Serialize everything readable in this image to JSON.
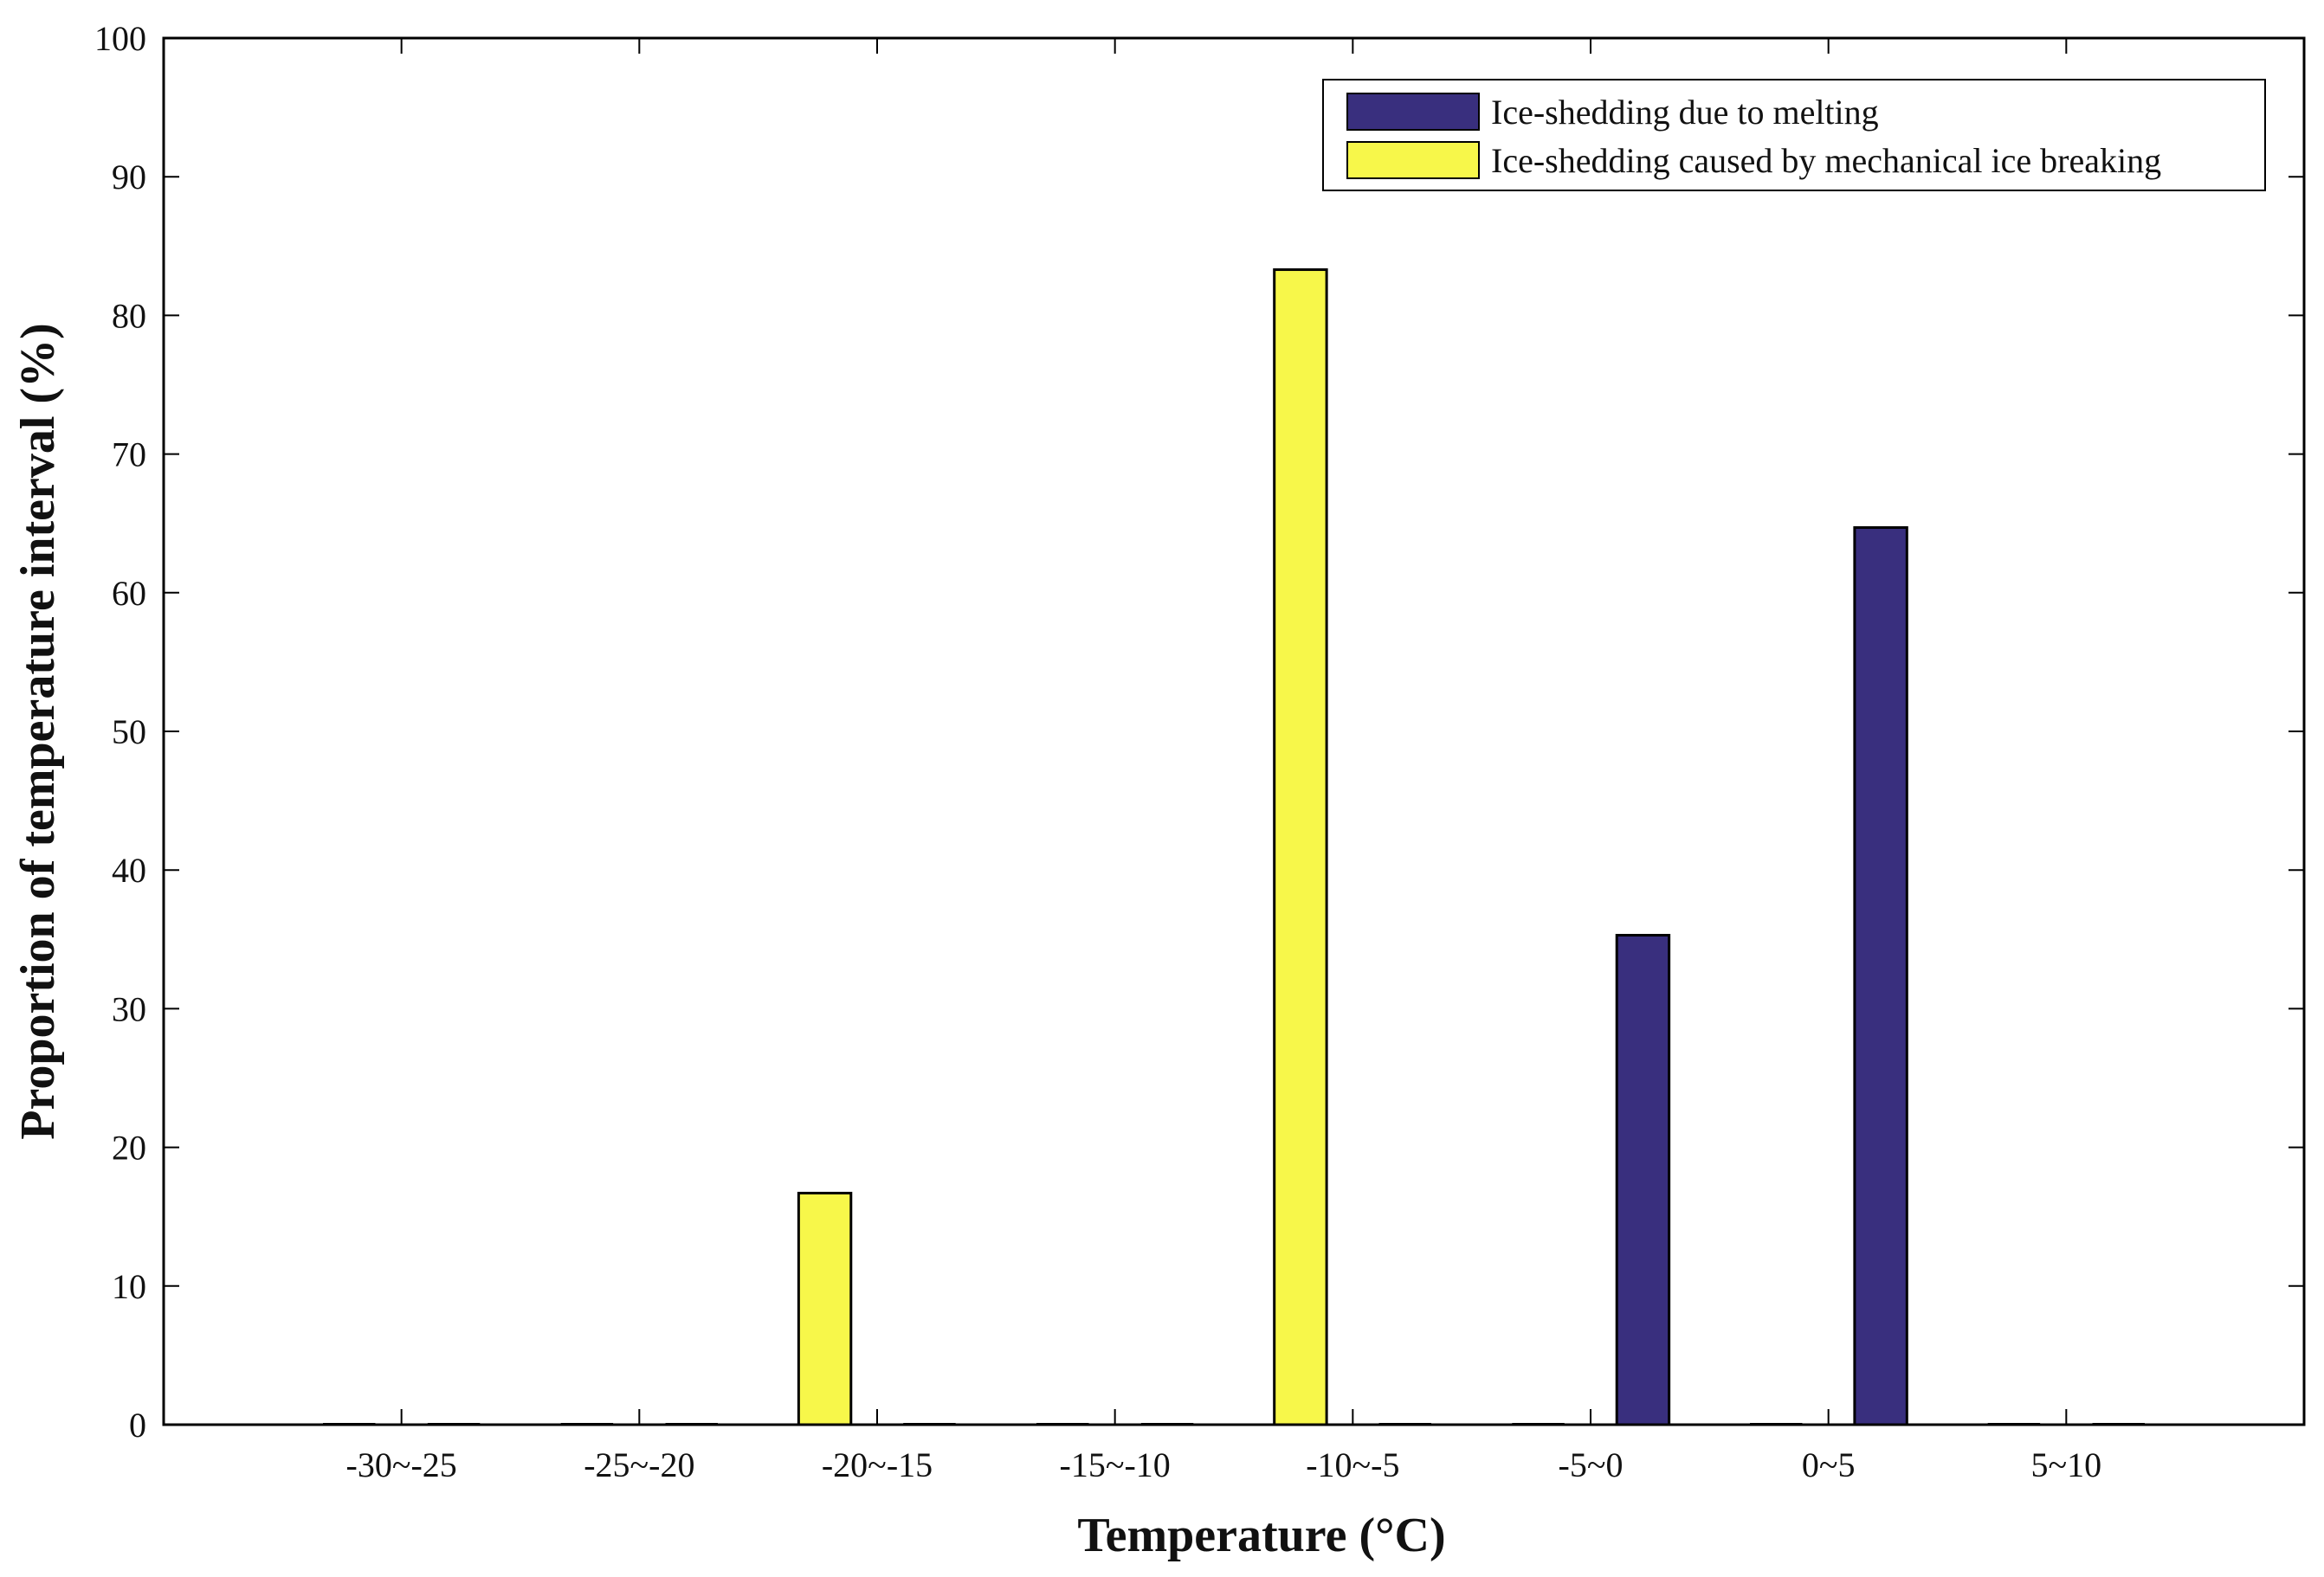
{
  "chart_data": {
    "type": "bar",
    "title": "",
    "xlabel": "Temperature (°C)",
    "ylabel": "Proportion of temperature interval (%)",
    "ylim": [
      0,
      100
    ],
    "yticks": [
      "0",
      "10",
      "20",
      "30",
      "40",
      "50",
      "60",
      "70",
      "80",
      "90",
      "100"
    ],
    "categories": [
      "-30~-25",
      "-25~-20",
      "-20~-15",
      "-15~-10",
      "-10~-5",
      "-5~0",
      "0~5",
      "5~10"
    ],
    "series": [
      {
        "name": "Ice-shedding due to melting",
        "color": "#392f7e",
        "values": [
          0,
          0,
          0,
          0,
          0,
          35.3,
          64.7,
          0
        ]
      },
      {
        "name": "Ice-shedding caused by mechanical ice breaking",
        "color": "#f7f74a",
        "values": [
          0,
          0,
          16.7,
          0,
          83.3,
          0,
          0,
          0
        ]
      }
    ],
    "legend": {
      "position": "top-right",
      "entries": [
        "Ice-shedding due to melting",
        "Ice-shedding caused by mechanical ice breaking"
      ]
    },
    "grid": false
  }
}
